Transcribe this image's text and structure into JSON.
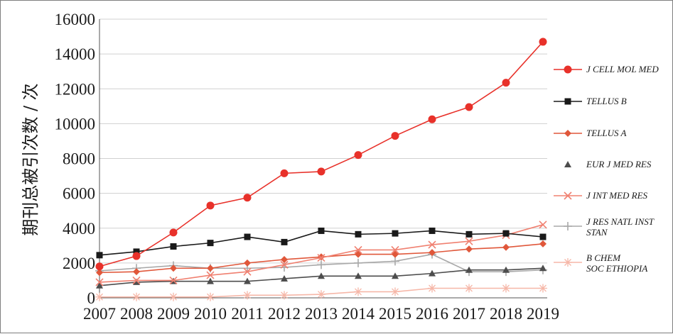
{
  "chart_data": {
    "type": "line",
    "title": "",
    "xlabel": "",
    "ylabel": "期刊总被引次数 / 次",
    "x": [
      "2007",
      "2008",
      "2009",
      "2010",
      "2011",
      "2012",
      "2013",
      "2014",
      "2015",
      "2016",
      "2017",
      "2018",
      "2019"
    ],
    "ylim": [
      0,
      16000
    ],
    "yticks": [
      "0",
      "2000",
      "4000",
      "6000",
      "8000",
      "10000",
      "12000",
      "14000",
      "16000"
    ],
    "grid": "horizontal",
    "legend_position": "right",
    "series": [
      {
        "name": "J CELL MOL MED",
        "color": "#e8312a",
        "marker": "circle",
        "values": [
          1800,
          2400,
          3750,
          5300,
          5750,
          7150,
          7250,
          8200,
          9300,
          10250,
          10950,
          12350,
          14700
        ]
      },
      {
        "name": "TELLUS B",
        "color": "#1a1a1a",
        "marker": "square",
        "values": [
          2450,
          2650,
          2950,
          3150,
          3500,
          3200,
          3850,
          3650,
          3700,
          3850,
          3650,
          3700,
          3500
        ]
      },
      {
        "name": "TELLUS A",
        "color": "#e0573a",
        "marker": "diamond",
        "values": [
          1450,
          1500,
          1700,
          1700,
          2000,
          2200,
          2350,
          2500,
          2500,
          2600,
          2800,
          2900,
          3100
        ]
      },
      {
        "name": "EUR J MED RES",
        "color": "#4d4d4d",
        "marker": "triangle",
        "values": [
          700,
          900,
          950,
          950,
          950,
          1100,
          1250,
          1250,
          1250,
          1400,
          1600,
          1600,
          1700
        ]
      },
      {
        "name": "J INT MED RES",
        "color": "#f08070",
        "marker": "x",
        "values": [
          900,
          1000,
          1000,
          1300,
          1500,
          1900,
          2300,
          2750,
          2750,
          3050,
          3250,
          3600,
          4200
        ]
      },
      {
        "name": "J RES NATL INST STAN",
        "color": "#a8a8a8",
        "marker": "plus",
        "values": [
          1550,
          1700,
          1850,
          1700,
          1700,
          1750,
          1900,
          2000,
          2100,
          2500,
          1500,
          1500,
          1600
        ]
      },
      {
        "name": "B CHEM SOC ETHIOPIA",
        "color": "#f6b7a8",
        "marker": "asterisk",
        "values": [
          50,
          50,
          50,
          50,
          150,
          150,
          200,
          350,
          350,
          550,
          550,
          550,
          550
        ]
      }
    ]
  }
}
